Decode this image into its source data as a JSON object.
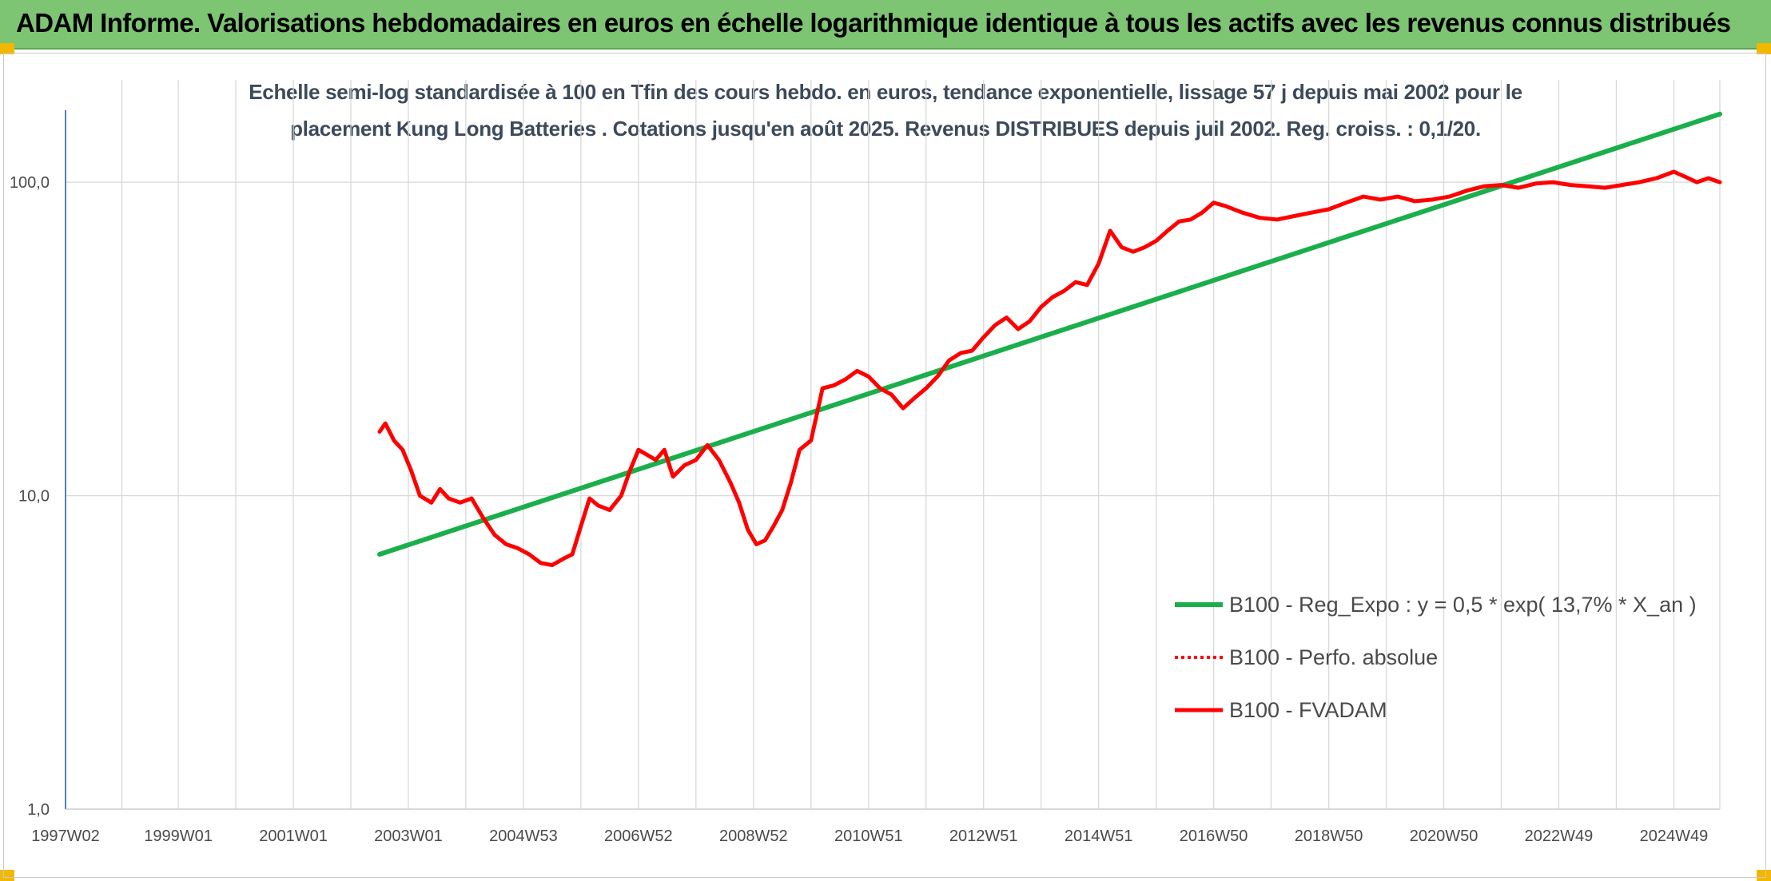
{
  "header": {
    "title": "ADAM Informe. Valorisations hebdomadaires en euros en échelle logarithmique identique à tous les actifs avec les revenus connus distribués"
  },
  "colors": {
    "header_bg": "#7dc473",
    "accent_corner": "#f2b800",
    "trend": "#1aaf4b",
    "fvadam": "#ff0000",
    "perfo": "#ff0000",
    "grid": "#d9d9d9",
    "axis": "#4f81bd"
  },
  "chart_data": {
    "type": "line",
    "title_lines": [
      "Echelle semi-log standardisée à 100 en Tfin des cours hebdo. en euros, tendance exponentielle, lissage 57 j depuis mai 2002 pour le",
      "placement Kung Long Batteries . Cotations jusqu'en août 2025. Revenus DISTRIBUES depuis juil 2002. Reg. croiss. : 0,1/20."
    ],
    "y_scale": "log",
    "ylim": [
      1,
      200
    ],
    "y_ticks": [
      {
        "value": 1,
        "label": "1,0"
      },
      {
        "value": 10,
        "label": "10,0"
      },
      {
        "value": 100,
        "label": "100,0"
      }
    ],
    "xlim": [
      1997.04,
      2025.8
    ],
    "x_ticks": [
      {
        "value": 1997.04,
        "label": "1997W02"
      },
      {
        "value": 1999.0,
        "label": "1999W01"
      },
      {
        "value": 2001.0,
        "label": "2001W01"
      },
      {
        "value": 2003.0,
        "label": "2003W01"
      },
      {
        "value": 2005.0,
        "label": "2004W53"
      },
      {
        "value": 2007.0,
        "label": "2006W52"
      },
      {
        "value": 2009.0,
        "label": "2008W52"
      },
      {
        "value": 2011.0,
        "label": "2010W51"
      },
      {
        "value": 2013.0,
        "label": "2012W51"
      },
      {
        "value": 2015.0,
        "label": "2014W51"
      },
      {
        "value": 2017.0,
        "label": "2016W50"
      },
      {
        "value": 2019.0,
        "label": "2018W50"
      },
      {
        "value": 2021.0,
        "label": "2020W50"
      },
      {
        "value": 2023.0,
        "label": "2022W49"
      },
      {
        "value": 2025.0,
        "label": "2024W49"
      }
    ],
    "grid": true,
    "legend_position": "bottom-right",
    "series": [
      {
        "name": "B100 - Reg_Expo : y = 0,5 * exp( 13,7% *  X_an )",
        "style": "solid-green",
        "x": [
          2002.5,
          2025.8
        ],
        "y": [
          6.5,
          165
        ]
      },
      {
        "name": "B100 - Perfo. absolue",
        "style": "dotted-red",
        "x": [],
        "y": []
      },
      {
        "name": "B100 - FVADAM",
        "style": "solid-red",
        "x": [
          2002.5,
          2002.6,
          2002.75,
          2002.9,
          2003.05,
          2003.2,
          2003.4,
          2003.55,
          2003.7,
          2003.9,
          2004.1,
          2004.3,
          2004.5,
          2004.7,
          2004.9,
          2005.1,
          2005.3,
          2005.5,
          2005.7,
          2005.85,
          2006.0,
          2006.15,
          2006.3,
          2006.5,
          2006.7,
          2006.85,
          2007.0,
          2007.15,
          2007.3,
          2007.45,
          2007.6,
          2007.8,
          2008.0,
          2008.2,
          2008.4,
          2008.6,
          2008.75,
          2008.9,
          2009.05,
          2009.2,
          2009.35,
          2009.5,
          2009.65,
          2009.8,
          2010.0,
          2010.2,
          2010.4,
          2010.6,
          2010.8,
          2011.0,
          2011.2,
          2011.4,
          2011.6,
          2011.8,
          2012.0,
          2012.2,
          2012.4,
          2012.6,
          2012.8,
          2013.0,
          2013.2,
          2013.4,
          2013.6,
          2013.8,
          2014.0,
          2014.2,
          2014.4,
          2014.6,
          2014.8,
          2015.0,
          2015.2,
          2015.4,
          2015.6,
          2015.8,
          2016.0,
          2016.2,
          2016.4,
          2016.6,
          2016.8,
          2017.0,
          2017.2,
          2017.5,
          2017.8,
          2018.1,
          2018.4,
          2018.7,
          2019.0,
          2019.3,
          2019.6,
          2019.9,
          2020.2,
          2020.5,
          2020.8,
          2021.1,
          2021.4,
          2021.7,
          2022.0,
          2022.3,
          2022.6,
          2022.9,
          2023.2,
          2023.5,
          2023.8,
          2024.1,
          2024.4,
          2024.7,
          2025.0,
          2025.2,
          2025.4,
          2025.6,
          2025.8
        ],
        "y": [
          16,
          17,
          15,
          14,
          12,
          10,
          9.5,
          10.5,
          9.8,
          9.5,
          9.8,
          8.5,
          7.5,
          7.0,
          6.8,
          6.5,
          6.1,
          6.0,
          6.3,
          6.5,
          8.0,
          9.8,
          9.3,
          9.0,
          10.0,
          12.0,
          14.0,
          13.5,
          13.0,
          14.0,
          11.5,
          12.5,
          13.0,
          14.5,
          13.0,
          11.0,
          9.5,
          7.8,
          7.0,
          7.2,
          8.0,
          9.0,
          11.0,
          14.0,
          15.0,
          22.0,
          22.5,
          23.5,
          25.0,
          24.0,
          22.0,
          21.0,
          19.0,
          20.5,
          22.0,
          24.0,
          27.0,
          28.5,
          29.0,
          32.0,
          35.0,
          37.0,
          34.0,
          36.0,
          40.0,
          43.0,
          45.0,
          48.0,
          47.0,
          55.0,
          70.0,
          62.0,
          60.0,
          62.0,
          65.0,
          70.0,
          75.0,
          76.0,
          80.0,
          86.0,
          84.0,
          80.0,
          77.0,
          76.0,
          78.0,
          80.0,
          82.0,
          86.0,
          90.0,
          88.0,
          90.0,
          87.0,
          88.0,
          90.0,
          94.0,
          97.0,
          98.0,
          96.0,
          99.0,
          100.0,
          98.0,
          97.0,
          96.0,
          98.0,
          100.0,
          103.0,
          108.0,
          104.0,
          100.0,
          103.0,
          100.0
        ]
      }
    ]
  }
}
